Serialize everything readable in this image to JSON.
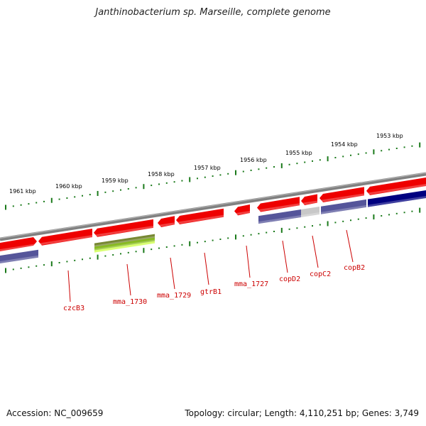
{
  "title": "Janthinobacterium sp. Marseille, complete genome",
  "footer": {
    "accession": "Accession: NC_009659",
    "summary": "Topology: circular; Length: 4,110,251 bp; Genes: 3,749"
  },
  "scale_labels": [
    "1961 kbp",
    "1960 kbp",
    "1959 kbp",
    "1958 kbp",
    "1957 kbp",
    "1956 kbp",
    "1955 kbp",
    "1954 kbp",
    "1953 kbp"
  ],
  "gene_labels": [
    "czcB3",
    "mma_1730",
    "mma_1729",
    "gtrB1",
    "mma_1727",
    "copD2",
    "copC2",
    "copB2"
  ],
  "colors": {
    "forward_cds": "#ee0000",
    "reverse_cds": "#55559a",
    "reverse_cds_dark": "#000080",
    "rna": "#88bb22",
    "grey_feature": "#c8c8c8",
    "backbone": "#808080",
    "tick": "#1a7a1a",
    "label": "#cc0000"
  }
}
